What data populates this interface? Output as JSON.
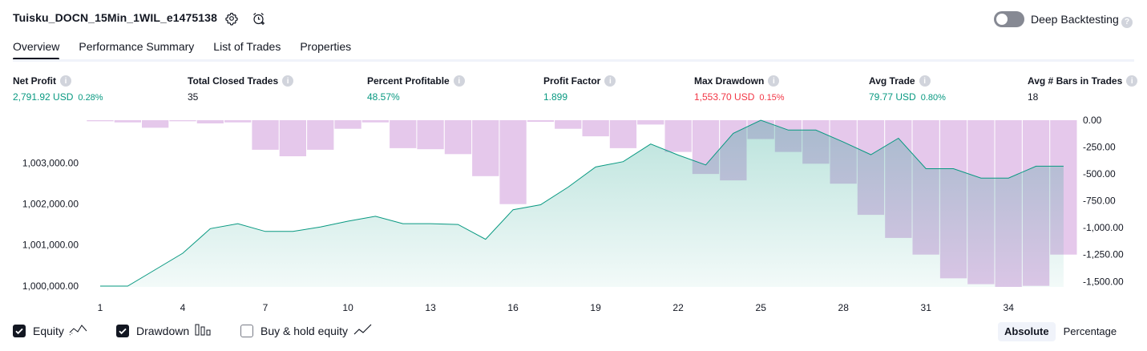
{
  "header": {
    "strategy_name": "Tuisku_DOCN_15Min_1WIL_e1475138",
    "settings_icon": "gear-icon",
    "alert_icon": "alarm-add-icon",
    "deep_backtesting_label": "Deep Backtesting",
    "deep_backtesting_enabled": false
  },
  "tabs": [
    {
      "label": "Overview",
      "active": true
    },
    {
      "label": "Performance Summary",
      "active": false
    },
    {
      "label": "List of Trades",
      "active": false
    },
    {
      "label": "Properties",
      "active": false
    }
  ],
  "stats": [
    {
      "label": "Net Profit",
      "value": "2,791.92 USD",
      "sub": "0.28%",
      "color": "#089981"
    },
    {
      "label": "Total Closed Trades",
      "value": "35",
      "sub": "",
      "color": "#131722"
    },
    {
      "label": "Percent Profitable",
      "value": "48.57%",
      "sub": "",
      "color": "#089981"
    },
    {
      "label": "Profit Factor",
      "value": "1.899",
      "sub": "",
      "color": "#089981"
    },
    {
      "label": "Max Drawdown",
      "value": "1,553.70 USD",
      "sub": "0.15%",
      "color": "#f23645"
    },
    {
      "label": "Avg Trade",
      "value": "79.77 USD",
      "sub": "0.80%",
      "color": "#089981"
    },
    {
      "label": "Avg # Bars in Trades",
      "value": "18",
      "sub": "",
      "color": "#131722"
    }
  ],
  "chart_data": {
    "type": "area",
    "x": [
      1,
      2,
      3,
      4,
      5,
      6,
      7,
      8,
      9,
      10,
      11,
      12,
      13,
      14,
      15,
      16,
      17,
      18,
      19,
      20,
      21,
      22,
      23,
      24,
      25,
      26,
      27,
      28,
      29,
      30,
      31,
      32,
      33,
      34,
      35,
      36
    ],
    "x_ticks": [
      "1",
      "4",
      "7",
      "10",
      "13",
      "16",
      "19",
      "22",
      "25",
      "28",
      "31",
      "34"
    ],
    "left_axis_ticks": [
      "1,000,000.00",
      "1,001,000.00",
      "1,002,000.00",
      "1,003,000.00"
    ],
    "right_axis_ticks": [
      "0.00",
      "-250.00",
      "-500.00",
      "-750.00",
      "-1,000.00",
      "-1,250.00",
      "-1,500.00"
    ],
    "left_ylim": [
      999980,
      1004040
    ],
    "right_ylim": [
      -1550,
      0
    ],
    "series": [
      {
        "name": "Equity",
        "kind": "area",
        "color": "#089981",
        "values": [
          1000000,
          1000000,
          1000400,
          1000800,
          1001400,
          1001520,
          1001330,
          1001330,
          1001440,
          1001580,
          1001700,
          1001520,
          1001520,
          1001500,
          1001140,
          1001860,
          1001980,
          1002410,
          1002900,
          1003030,
          1003460,
          1003190,
          1002950,
          1003720,
          1004040,
          1003800,
          1003800,
          1003510,
          1003200,
          1003600,
          1002860,
          1002860,
          1002630,
          1002630,
          1002920,
          1002920
        ]
      },
      {
        "name": "Drawdown",
        "kind": "bar",
        "color": "#e1bee7",
        "values": [
          -10,
          -20,
          -70,
          -10,
          -30,
          -20,
          -275,
          -335,
          -275,
          -80,
          -20,
          -260,
          -270,
          -315,
          -520,
          -780,
          -15,
          -80,
          -150,
          -260,
          -40,
          -295,
          -500,
          -560,
          -175,
          -295,
          -405,
          -590,
          -880,
          -1095,
          -1250,
          -1470,
          -1525,
          -1550,
          -1540,
          -1250
        ]
      }
    ]
  },
  "legend": [
    {
      "label": "Equity",
      "checked": true,
      "icon": "equity-line-icon"
    },
    {
      "label": "Drawdown",
      "checked": true,
      "icon": "drawdown-bars-icon"
    },
    {
      "label": "Buy & hold equity",
      "checked": false,
      "icon": "buy-hold-line-icon"
    }
  ],
  "scale_toggle": {
    "absolute_label": "Absolute",
    "percentage_label": "Percentage",
    "selected": "Absolute"
  }
}
